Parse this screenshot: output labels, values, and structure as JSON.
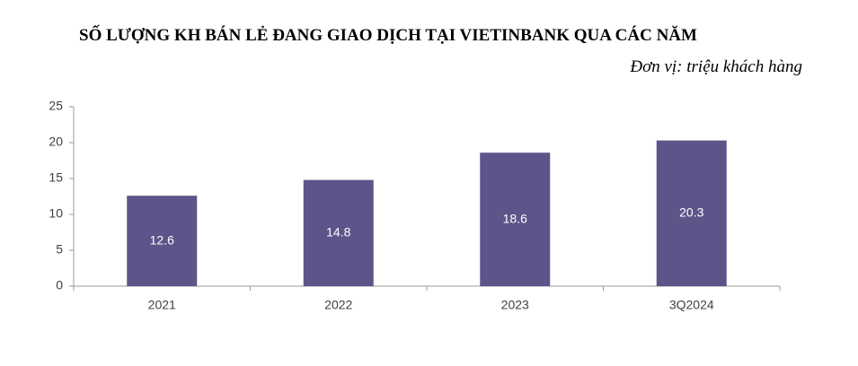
{
  "chart_data": {
    "type": "bar",
    "title": "SỐ LƯỢNG KH BÁN LẺ ĐANG GIAO DỊCH TẠI VIETINBANK QUA CÁC NĂM",
    "subtitle": "Đơn vị: triệu khách hàng",
    "categories": [
      "2021",
      "2022",
      "2023",
      "3Q2024"
    ],
    "values": [
      12.6,
      14.8,
      18.6,
      20.3
    ],
    "color": "#5f5489",
    "ylim": [
      0,
      25
    ],
    "yticks": [
      0,
      5,
      10,
      15,
      20,
      25
    ],
    "grid": false
  }
}
